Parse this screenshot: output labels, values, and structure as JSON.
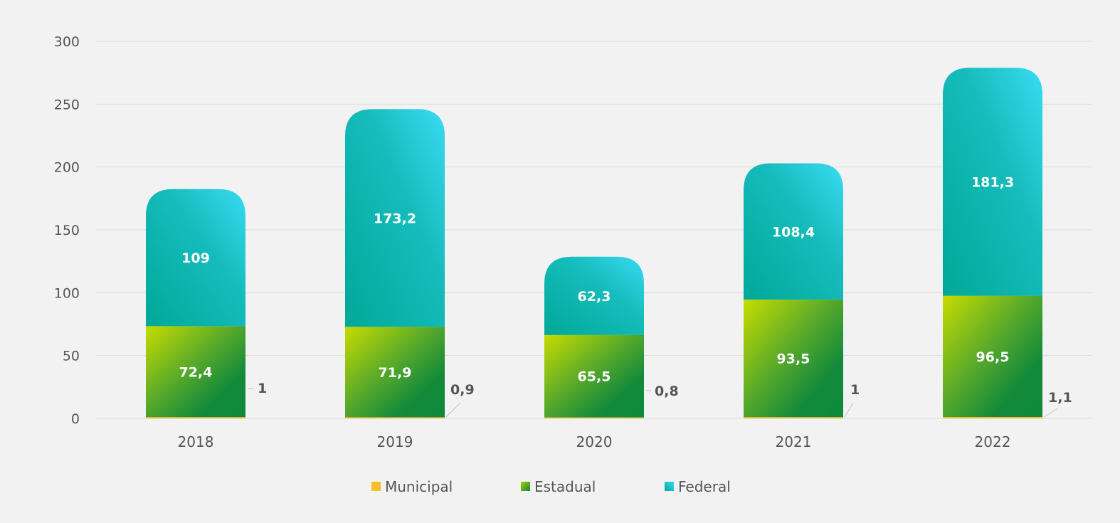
{
  "chart_data": {
    "type": "bar",
    "stacked": true,
    "title": "",
    "xlabel": "",
    "ylabel": "",
    "ylim": [
      0,
      300
    ],
    "yticks": [
      0,
      50,
      100,
      150,
      200,
      250,
      300
    ],
    "grid": true,
    "legend_position": "bottom-center",
    "categories": [
      "2018",
      "2019",
      "2020",
      "2021",
      "2022"
    ],
    "series": [
      {
        "name": "Municipal",
        "color": "#f5c02a",
        "values": [
          1,
          0.9,
          0.8,
          1,
          1.1
        ],
        "labels": [
          "1",
          "0,9",
          "0,8",
          "1",
          "1,1"
        ]
      },
      {
        "name": "Estadual",
        "color": "#3e9d2a",
        "values": [
          72.4,
          71.9,
          65.5,
          93.5,
          96.5
        ],
        "labels": [
          "72,4",
          "71,9",
          "65,5",
          "93,5",
          "96,5"
        ]
      },
      {
        "name": "Federal",
        "color": "#12b5ae",
        "values": [
          109,
          173.2,
          62.3,
          108.4,
          181.3
        ],
        "labels": [
          "109",
          "173,2",
          "62,3",
          "108,4",
          "181,3"
        ]
      }
    ]
  }
}
